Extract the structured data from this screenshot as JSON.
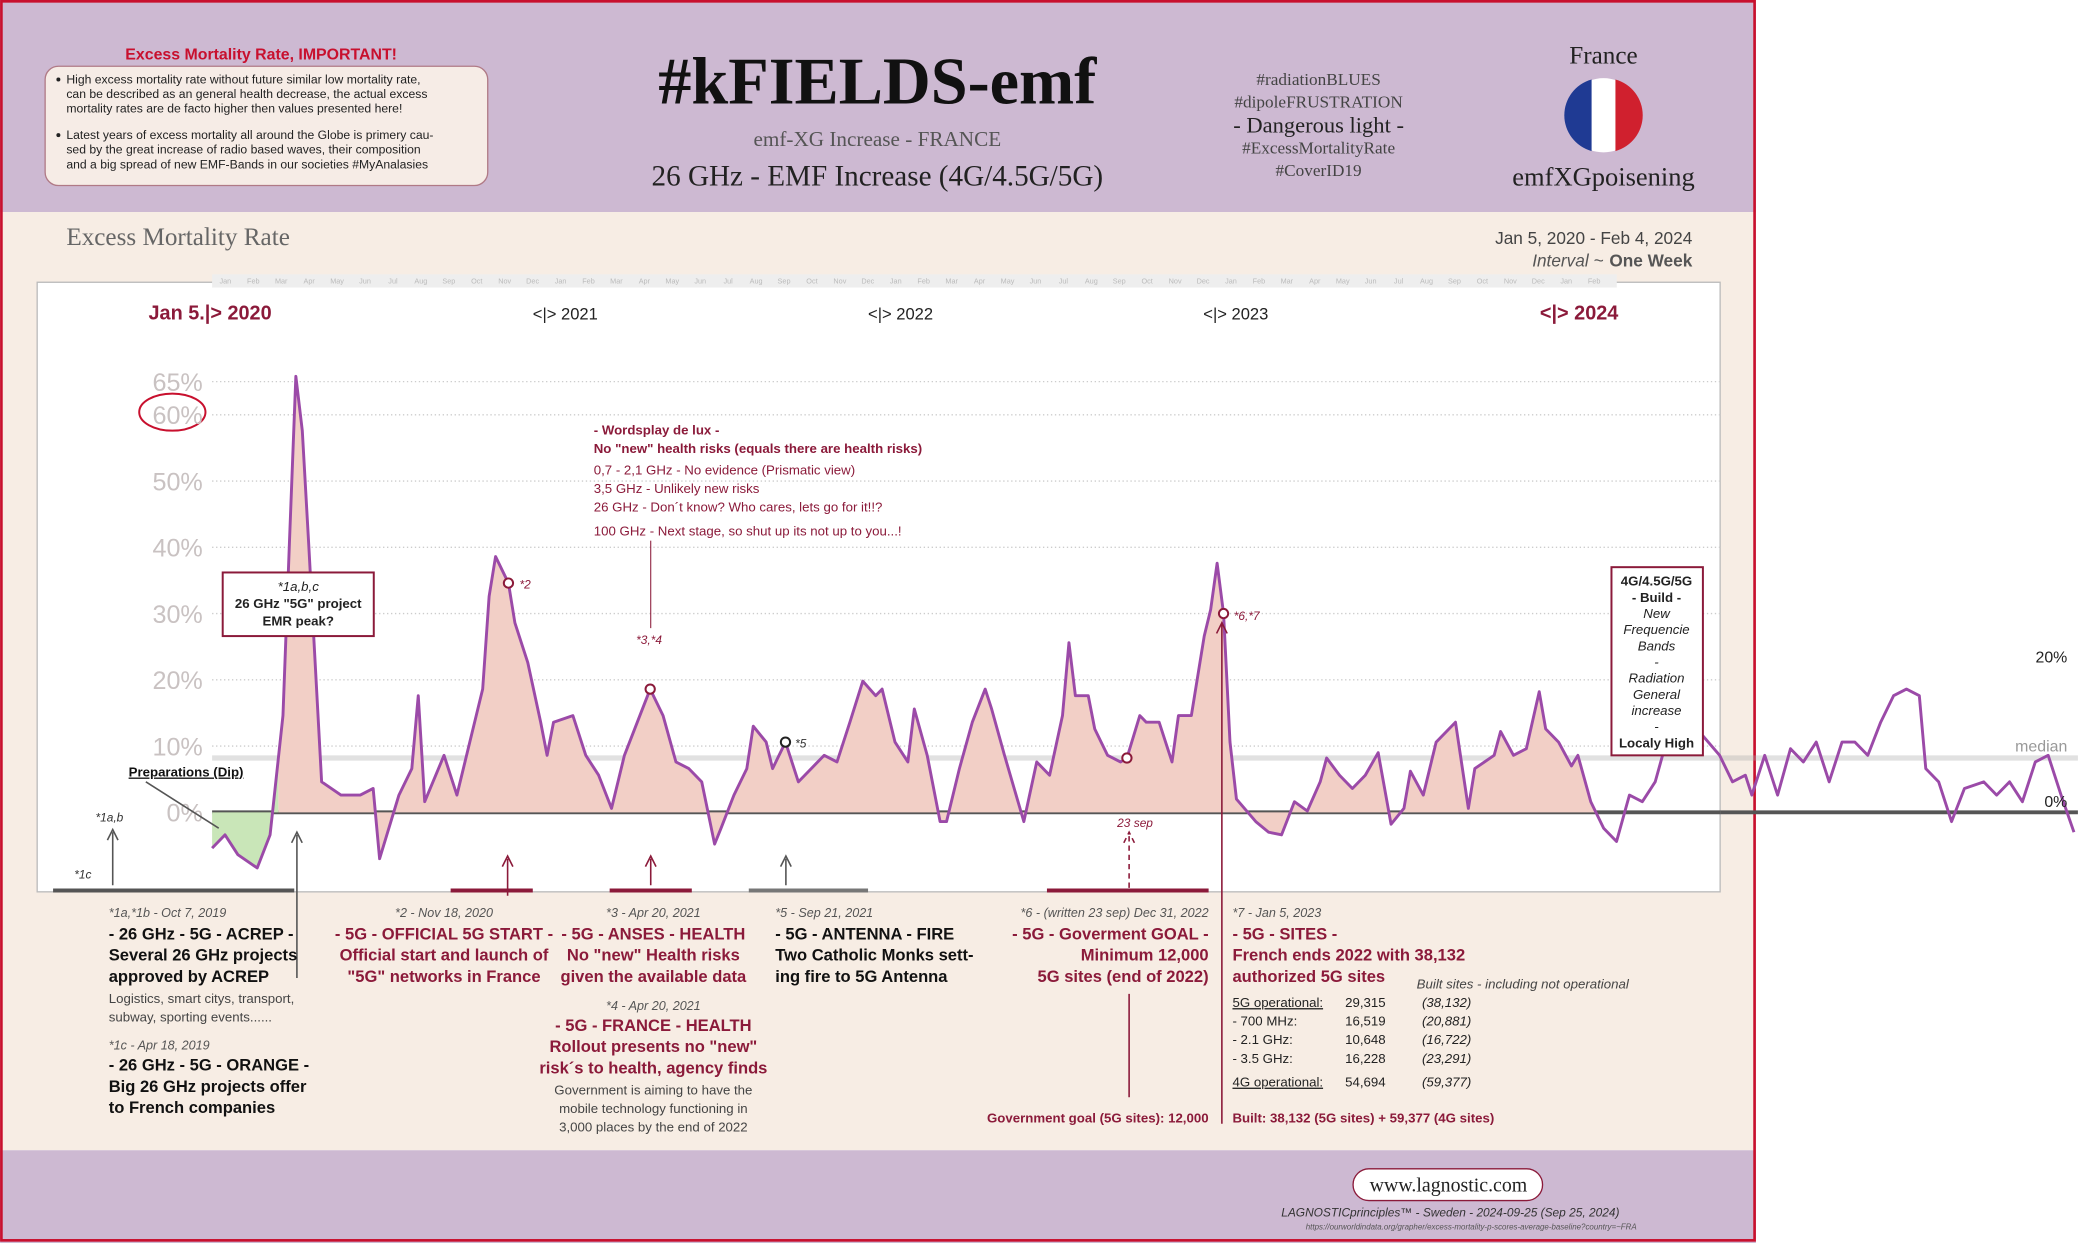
{
  "header": {
    "note_title": "Excess Mortality Rate, IMPORTANT!",
    "note_items": [
      [
        "High excess mortality rate without future similar low mortality rate,",
        "can be described as an general health decrease, the actual excess",
        "mortality rates are de facto higher then values presented here!"
      ],
      [
        "Latest years of excess mortality all around the Globe is primery cau-",
        "sed by the great increase of radio based waves, their composition",
        "and a big spread of new EMF-Bands in our societies #MyAnalasies"
      ]
    ],
    "title": "#kFIELDS-emf",
    "subtitle": "emf-XG Increase - FRANCE",
    "headline": "26 GHz - EMF Increase (4G/4.5G/5G)",
    "hashtags": [
      "#radiationBLUES",
      "#dipoleFRUSTRATION",
      "- Dangerous light -",
      "#ExcessMortalityRate",
      "#CoverID19"
    ],
    "country": "France",
    "brand": "emfXGpoisening"
  },
  "chart_data": {
    "type": "line",
    "title": "Excess Mortality Rate",
    "date_range": "Jan 5, 2020 - Feb 4, 2024",
    "interval_label": "Interval ~",
    "interval": "One Week",
    "months": [
      "Jan",
      "Feb",
      "Mar",
      "Apr",
      "May",
      "Jun",
      "Jul",
      "Aug",
      "Sep",
      "Oct",
      "Nov",
      "Dec"
    ],
    "year_labels": [
      "Jan 5.|> 2020",
      "<|> 2021",
      "<|> 2022",
      "<|> 2023",
      "<|> 2024"
    ],
    "x": [
      0,
      2,
      4,
      7,
      9,
      11,
      12,
      13,
      14,
      15,
      17,
      20,
      23,
      25,
      26,
      29,
      31,
      32,
      33,
      36,
      38,
      40,
      42,
      43,
      44,
      46,
      47,
      49,
      51,
      52,
      53,
      56,
      58,
      60,
      62,
      64,
      66,
      68,
      70,
      72,
      74,
      76,
      78,
      79,
      81,
      83,
      84,
      86,
      87,
      89,
      91,
      93,
      95,
      97,
      99,
      101,
      103,
      104,
      106,
      108,
      109,
      111,
      113,
      114,
      116,
      118,
      120,
      121,
      123,
      126,
      128,
      130,
      132,
      133,
      134,
      136,
      137,
      139,
      141,
      142,
      144,
      145,
      147,
      149,
      150,
      152,
      154,
      155,
      156,
      157,
      158,
      159,
      162,
      164,
      166,
      168,
      170,
      172,
      173,
      175,
      177,
      179,
      181,
      183,
      185,
      186,
      188,
      190,
      191,
      193,
      195,
      196,
      199,
      200,
      202,
      204,
      206,
      207,
      209,
      211,
      212,
      214,
      216,
      218,
      220,
      222,
      224,
      226,
      228,
      229,
      231,
      234,
      236,
      238,
      239,
      241,
      243,
      245,
      247,
      249,
      251,
      253,
      255,
      257,
      259,
      261,
      263,
      265,
      266,
      268,
      270,
      272,
      275,
      277,
      279,
      281,
      283,
      285,
      287,
      289
    ],
    "series": [
      {
        "name": "Excess mortality",
        "color": "#9b4aa8",
        "values": [
          -5.4,
          -3.4,
          -6.4,
          -8.4,
          -3.4,
          14.6,
          40.6,
          65.8,
          57.6,
          40.4,
          4.6,
          2.6,
          2.6,
          3.6,
          -7,
          2.6,
          6.6,
          17.6,
          1.6,
          8.6,
          2.6,
          10.6,
          18.6,
          32.6,
          38.6,
          34.6,
          28.6,
          22.6,
          13.6,
          8.6,
          13.6,
          14.6,
          8.6,
          5.6,
          0.6,
          8.6,
          13.6,
          18.6,
          14.6,
          7.6,
          6.6,
          4.6,
          -4.8,
          -2.4,
          2.6,
          6.6,
          13,
          10.6,
          6.6,
          10.6,
          4.6,
          6.6,
          8.6,
          7.6,
          13.6,
          19.8,
          17.6,
          18.6,
          10.6,
          7.6,
          15.6,
          8.6,
          -1.4,
          -1.4,
          6.6,
          13.6,
          18.6,
          15.6,
          8.6,
          -1.4,
          7.6,
          5.6,
          14.6,
          25.6,
          17.6,
          17.6,
          12.6,
          8.6,
          7.6,
          8.2,
          14.6,
          13.6,
          13.6,
          7.6,
          14.6,
          14.6,
          26.6,
          30.6,
          37.6,
          30,
          10.6,
          2,
          -1.4,
          -3,
          -3.4,
          1.6,
          0.2,
          4.6,
          8.2,
          5.6,
          3.6,
          5.6,
          9,
          -1.8,
          0.6,
          6.2,
          2.6,
          10.6,
          11.6,
          13.6,
          0.6,
          6.6,
          8.6,
          12.2,
          8.6,
          9.6,
          18.2,
          12.6,
          10.6,
          7,
          8.6,
          1.6,
          -2.4,
          -4.4,
          2.6,
          1.6,
          4.6,
          11.6,
          10.6,
          9.2,
          12,
          8.6,
          4.6,
          5.6,
          2.6,
          8.6,
          2.6,
          9.6,
          7.6,
          10.6,
          4.6,
          10.6,
          10.6,
          8.6,
          13.6,
          17.6,
          18.6,
          17.6,
          6.6,
          4.6,
          -1.4,
          3.6,
          4.6,
          2.6,
          4.6,
          1.6,
          7.6,
          8.6,
          2.6,
          -3
        ]
      }
    ],
    "xlim": [
      0,
      289
    ],
    "ylim": [
      -12,
      80
    ],
    "yticks": [
      {
        "value": 0,
        "label": "0%"
      },
      {
        "value": 10,
        "label": "10%"
      },
      {
        "value": 20,
        "label": "20%"
      },
      {
        "value": 30,
        "label": "30%"
      },
      {
        "value": 40,
        "label": "40%"
      },
      {
        "value": 50,
        "label": "50%"
      },
      {
        "value": 60,
        "label": "60%"
      },
      {
        "value": 65,
        "label": "65%"
      }
    ],
    "grid": true,
    "median_value": 8.2,
    "highlights": [
      46,
      68,
      89,
      142,
      157
    ],
    "annotations": [
      "*2",
      "*3,*4",
      "*5",
      "*6,*7",
      "23 sep",
      "*1a,b",
      "*1c",
      "Preparations (Dip)"
    ],
    "peak_box": [
      "*1a,b,c",
      "26 GHz \"5G\" project",
      "EMR peak?"
    ],
    "build_box": [
      "4G/4.5G/5G",
      "- Build -",
      "New",
      "Frequencie",
      "Bands",
      "-",
      "Radiation",
      "General",
      "increase",
      "-",
      "Localy High"
    ],
    "wordsplay": [
      "- Wordsplay de lux -",
      "No \"new\" health risks (equals there are health risks)",
      "0,7 - 2,1 GHz - No evidence (Prismatic view)",
      "3,5 GHz - Unlikely new risks",
      "26 GHz - Don´t know?  Who cares, lets go for it!!?",
      "100 GHz - Next stage, so shut up its not up to you...!"
    ],
    "right_labels": [
      "20%",
      "median",
      "0%"
    ]
  },
  "notes": [
    {
      "lines": [
        "*1a,*1b - Oct 7, 2019",
        "- 26 GHz - 5G - ACREP -",
        "Several 26 GHz projects",
        "approved by ACREP",
        "Logistics, smart citys, transport,",
        "subway, sporting events......",
        "*1c - Apr 18, 2019",
        "- 26 GHz - 5G - ORANGE -",
        "Big 26 GHz projects offer",
        "to French companies"
      ]
    },
    {
      "lines": [
        "*2 - Nov 18, 2020",
        "- 5G - OFFICIAL 5G START -",
        "Official start and launch of",
        "\"5G\" networks in France"
      ]
    },
    {
      "lines": [
        "*3 - Apr 20, 2021",
        "- 5G - ANSES - HEALTH",
        "No \"new\" Health risks",
        "given the available data",
        "*4 - Apr 20, 2021",
        "- 5G - FRANCE - HEALTH",
        "Rollout presents no \"new\"",
        "risk´s to health, agency finds",
        "Government is aiming to have the",
        "mobile technology functioning in",
        "3,000 places by the end of 2022"
      ]
    },
    {
      "lines": [
        "*5 - Sep 21, 2021",
        "- 5G - ANTENNA - FIRE",
        "Two Catholic Monks sett-",
        "ing fire to 5G Antenna"
      ]
    },
    {
      "lines": [
        "*6 - (written 23 sep) Dec 31, 2022",
        "- 5G - Goverment GOAL -",
        "Minimum 12,000",
        "5G sites (end of 2022)"
      ],
      "goal": "Government goal (5G sites): 12,000"
    },
    {
      "lines": [
        "*7 - Jan 5, 2023",
        "- 5G - SITES -",
        "French ends 2022 with 38,132",
        "authorized 5G sites"
      ],
      "table": {
        "header": "Built sites - including not operational",
        "rows": [
          [
            "5G operational:",
            "29,315",
            "(38,132)"
          ],
          [
            "- 700 MHz:",
            "16,519",
            "(20,881)"
          ],
          [
            "- 2.1 GHz:",
            "10,648",
            "(16,722)"
          ],
          [
            "- 3.5 GHz:",
            "16,228",
            "(23,291)"
          ],
          [
            "4G operational:",
            "54,694",
            "(59,377)"
          ]
        ]
      },
      "built": "Built:  38,132 (5G sites) + 59,377 (4G sites)"
    }
  ],
  "footer": {
    "site": "www.lagnostic.com",
    "credit": "LAGNOSTICprinciples™ - Sweden - 2024-09-25 (Sep 25, 2024)",
    "source": "https://ourworldindata.org/grapher/excess-mortality-p-scores-average-baseline?country=~FRA"
  }
}
